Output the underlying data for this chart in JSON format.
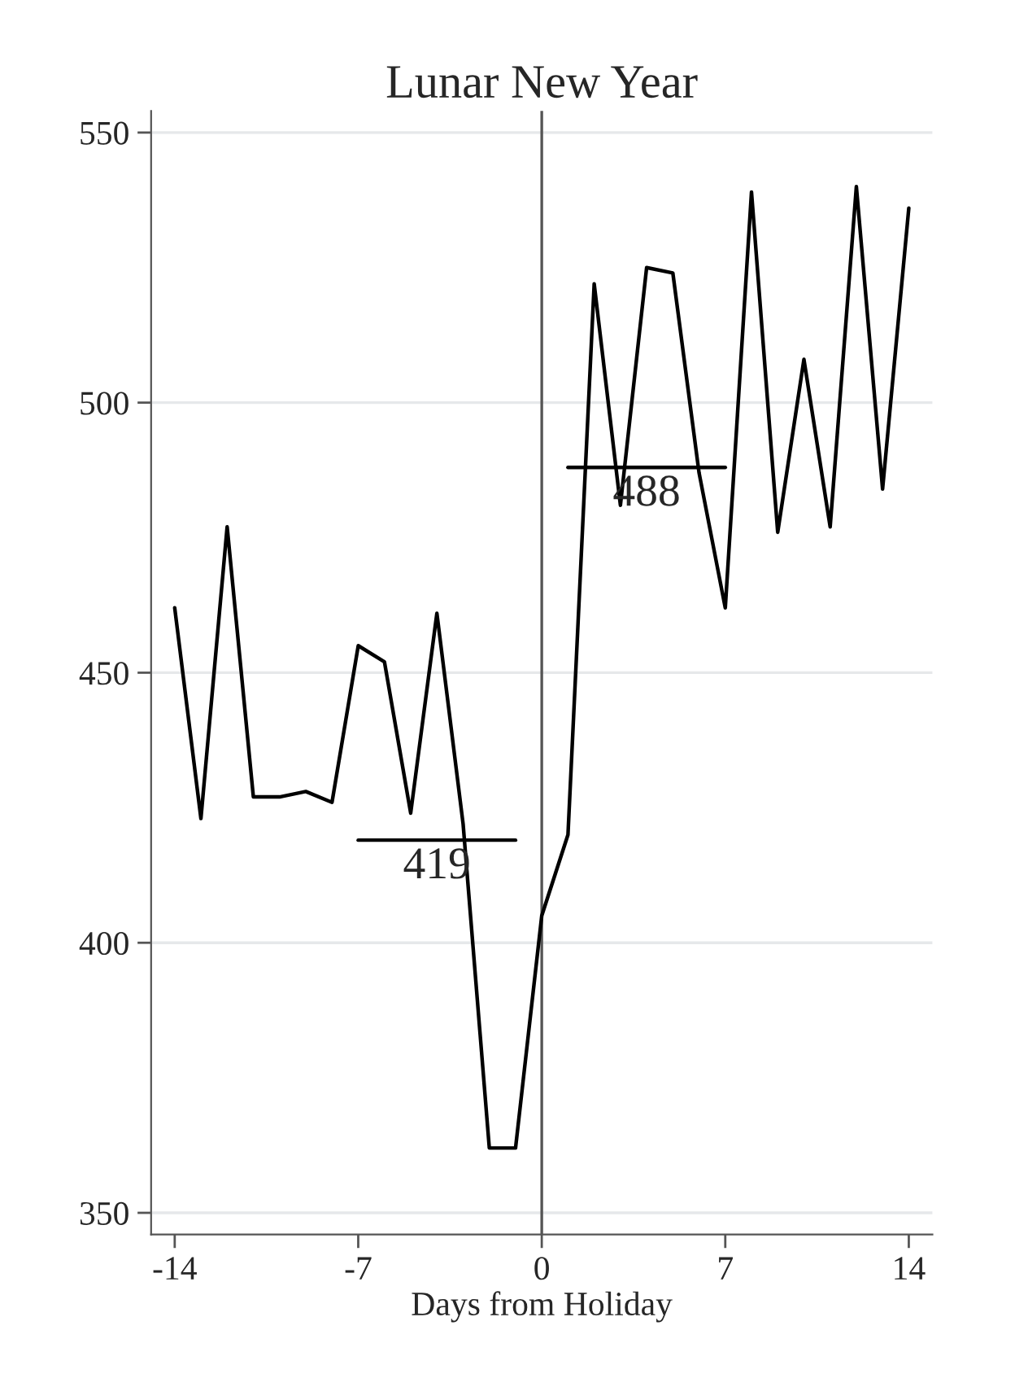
{
  "chart_data": {
    "type": "line",
    "title": "Lunar New Year",
    "xlabel": "Days from Holiday",
    "series": [
      {
        "color": "#000000",
        "x": [
          -14,
          -13,
          -12,
          -11,
          -10,
          -9,
          -8,
          -7,
          -6,
          -5,
          -4,
          -3,
          -2,
          -1,
          0,
          1,
          2,
          3,
          4,
          5,
          6,
          7,
          8,
          9,
          10,
          11,
          12,
          13,
          14
        ],
        "values": [
          462,
          423,
          477,
          427,
          427,
          428,
          426,
          455,
          452,
          424,
          461,
          422,
          362,
          362,
          405,
          420,
          522,
          481,
          525,
          524,
          487,
          462,
          539,
          476,
          508,
          477,
          540,
          484,
          536
        ]
      },
      {
        "color": "#000000",
        "x": [
          -7,
          -1
        ],
        "values": [
          419,
          419
        ]
      },
      {
        "color": "#000000",
        "x": [
          1,
          7
        ],
        "values": [
          488,
          488
        ]
      }
    ],
    "annotations": [
      {
        "text": "419",
        "x": -4,
        "y": 419
      },
      {
        "text": "488",
        "x": 4,
        "y": 488
      }
    ],
    "ref_lines": [
      {
        "axis": "x",
        "value": 0,
        "color": "#555555"
      }
    ],
    "xlim": [
      -14.9,
      14.9
    ],
    "xticks": [
      -14,
      -7,
      0,
      7,
      14
    ],
    "ylim": [
      346,
      554
    ],
    "yticks": [
      350,
      400,
      450,
      500,
      550
    ],
    "grid": "y",
    "marker": "none",
    "line_style": "solid"
  }
}
